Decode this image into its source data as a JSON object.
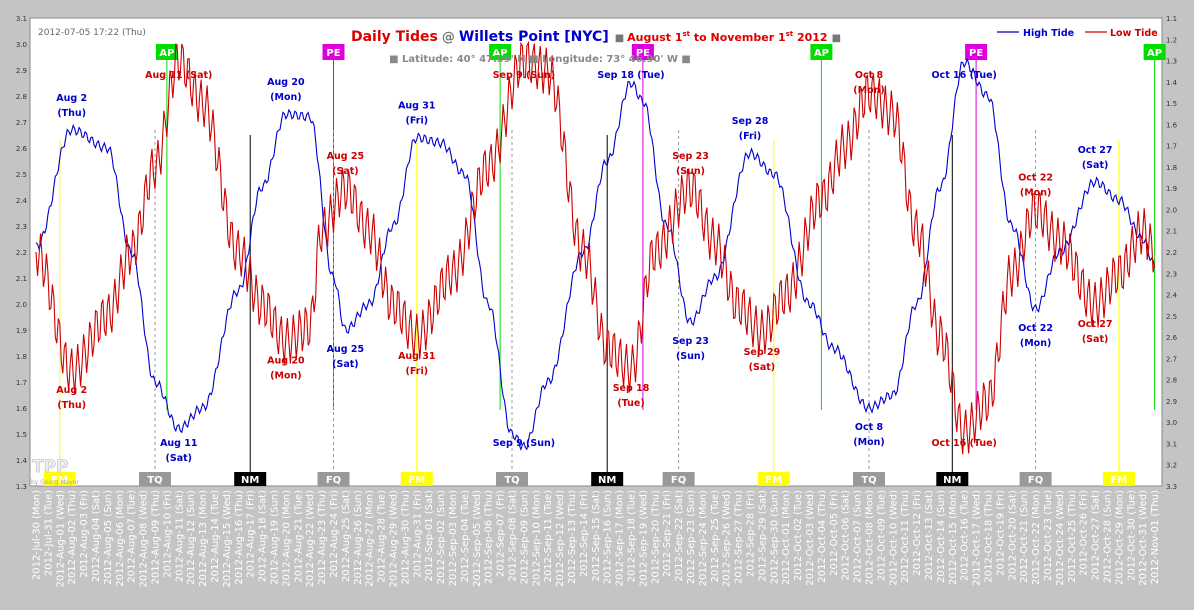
{
  "chart_data": {
    "type": "line",
    "timestamp": "2012-07-05 17:22 (Thu)",
    "title": {
      "part1": "Daily Tides",
      "at": "@",
      "location": "Willets Point [NYC]",
      "range_prefix": "August 1",
      "range_sup1": "st",
      "range_mid": " to November 1",
      "range_sup2": "st",
      "range_year": " 2012"
    },
    "subtitle": {
      "lat": "Latitude: 40° 47.59' N",
      "lon": "Longitude: 73° 46.90' W"
    },
    "legend": {
      "placement": "top-right",
      "high": "High Tide",
      "low": "Low Tide"
    },
    "colors": {
      "high": "#0000cc",
      "low": "#cc0000",
      "bg": "#ffffff",
      "frame": "#c4c4c4"
    },
    "watermark": {
      "main": "TPP",
      "sub": "by Georg Mayer"
    },
    "y_left_ticks": [
      "1.3",
      "1.4",
      "1.5",
      "1.6",
      "1.7",
      "1.8",
      "1.9",
      "2.0",
      "2.1",
      "2.2",
      "2.3",
      "2.4",
      "2.5",
      "2.6",
      "2.7",
      "2.8",
      "2.9",
      "3.0",
      "3.1"
    ],
    "y_right_ticks": [
      "1.1",
      "1.2",
      "1.3",
      "1.4",
      "1.5",
      "1.6",
      "1.7",
      "1.8",
      "1.9",
      "2.0",
      "2.1",
      "2.2",
      "2.3",
      "2.4",
      "2.5",
      "2.6",
      "2.7",
      "2.8",
      "2.9",
      "3.0",
      "3.1",
      "3.2",
      "3.3"
    ],
    "y_left_range": [
      1.3,
      3.1
    ],
    "y_right_range": [
      1.1,
      3.3
    ],
    "y_right_inverted": true,
    "x_start_day": "2012-07-30",
    "x_labels": [
      "2012-Jul-30 (Mon)",
      "2012-Jul-31 (Tue)",
      "2012-Aug-01 (Wed)",
      "2012-Aug-02 (Thu)",
      "2012-Aug-03 (Fri)",
      "2012-Aug-04 (Sat)",
      "2012-Aug-05 (Sun)",
      "2012-Aug-06 (Mon)",
      "2012-Aug-07 (Tue)",
      "2012-Aug-08 (Wed)",
      "2012-Aug-09 (Thu)",
      "2012-Aug-10 (Fri)",
      "2012-Aug-11 (Sat)",
      "2012-Aug-12 (Sun)",
      "2012-Aug-13 (Mon)",
      "2012-Aug-14 (Tue)",
      "2012-Aug-15 (Wed)",
      "2012-Aug-16 (Thu)",
      "2012-Aug-17 (Fri)",
      "2012-Aug-18 (Sat)",
      "2012-Aug-19 (Sun)",
      "2012-Aug-20 (Mon)",
      "2012-Aug-21 (Tue)",
      "2012-Aug-22 (Wed)",
      "2012-Aug-23 (Thu)",
      "2012-Aug-24 (Fri)",
      "2012-Aug-25 (Sat)",
      "2012-Aug-26 (Sun)",
      "2012-Aug-27 (Mon)",
      "2012-Aug-28 (Tue)",
      "2012-Aug-29 (Wed)",
      "2012-Aug-30 (Thu)",
      "2012-Aug-31 (Fri)",
      "2012-Sep-01 (Sat)",
      "2012-Sep-02 (Sun)",
      "2012-Sep-03 (Mon)",
      "2012-Sep-04 (Tue)",
      "2012-Sep-05 (Wed)",
      "2012-Sep-06 (Thu)",
      "2012-Sep-07 (Fri)",
      "2012-Sep-08 (Sat)",
      "2012-Sep-09 (Sun)",
      "2012-Sep-10 (Mon)",
      "2012-Sep-11 (Tue)",
      "2012-Sep-12 (Wed)",
      "2012-Sep-13 (Thu)",
      "2012-Sep-14 (Fri)",
      "2012-Sep-15 (Sat)",
      "2012-Sep-16 (Sun)",
      "2012-Sep-17 (Mon)",
      "2012-Sep-18 (Tue)",
      "2012-Sep-19 (Wed)",
      "2012-Sep-20 (Thu)",
      "2012-Sep-21 (Fri)",
      "2012-Sep-22 (Sat)",
      "2012-Sep-23 (Sun)",
      "2012-Sep-24 (Mon)",
      "2012-Sep-25 (Tue)",
      "2012-Sep-26 (Wed)",
      "2012-Sep-27 (Thu)",
      "2012-Sep-28 (Fri)",
      "2012-Sep-29 (Sat)",
      "2012-Sep-30 (Sun)",
      "2012-Oct-01 (Mon)",
      "2012-Oct-02 (Tue)",
      "2012-Oct-03 (Wed)",
      "2012-Oct-04 (Thu)",
      "2012-Oct-05 (Fri)",
      "2012-Oct-06 (Sat)",
      "2012-Oct-07 (Sun)",
      "2012-Oct-08 (Mon)",
      "2012-Oct-09 (Tue)",
      "2012-Oct-10 (Wed)",
      "2012-Oct-11 (Thu)",
      "2012-Oct-12 (Fri)",
      "2012-Oct-13 (Sat)",
      "2012-Oct-14 (Sun)",
      "2012-Oct-15 (Mon)",
      "2012-Oct-16 (Tue)",
      "2012-Oct-17 (Wed)",
      "2012-Oct-18 (Thu)",
      "2012-Oct-19 (Fri)",
      "2012-Oct-20 (Sat)",
      "2012-Oct-21 (Sun)",
      "2012-Oct-22 (Mon)",
      "2012-Oct-23 (Tue)",
      "2012-Oct-24 (Wed)",
      "2012-Oct-25 (Thu)",
      "2012-Oct-26 (Fri)",
      "2012-Oct-27 (Sat)",
      "2012-Oct-28 (Sun)",
      "2012-Oct-29 (Mon)",
      "2012-Oct-30 (Tue)",
      "2012-Oct-31 (Wed)",
      "2012-Nov-01 (Thu)"
    ],
    "series": [
      {
        "name": "High Tide",
        "axis": "left",
        "color": "#0000cc",
        "key_points": [
          [
            "2012-07-30",
            2.22
          ],
          [
            "2012-08-02",
            2.67
          ],
          [
            "2012-08-05",
            2.6
          ],
          [
            "2012-08-07",
            2.2
          ],
          [
            "2012-08-09",
            1.7
          ],
          [
            "2012-08-11",
            1.52
          ],
          [
            "2012-08-13",
            1.6
          ],
          [
            "2012-08-16",
            2.05
          ],
          [
            "2012-08-18",
            2.45
          ],
          [
            "2012-08-20",
            2.73
          ],
          [
            "2012-08-22",
            2.72
          ],
          [
            "2012-08-24",
            2.1
          ],
          [
            "2012-08-25",
            1.9
          ],
          [
            "2012-08-27",
            2.0
          ],
          [
            "2012-08-29",
            2.3
          ],
          [
            "2012-08-31",
            2.64
          ],
          [
            "2012-09-02",
            2.62
          ],
          [
            "2012-09-04",
            2.5
          ],
          [
            "2012-09-06",
            2.0
          ],
          [
            "2012-09-08",
            1.5
          ],
          [
            "2012-09-09",
            1.45
          ],
          [
            "2012-09-11",
            1.7
          ],
          [
            "2012-09-14",
            2.2
          ],
          [
            "2012-09-16",
            2.55
          ],
          [
            "2012-09-18",
            2.85
          ],
          [
            "2012-09-19",
            2.78
          ],
          [
            "2012-09-21",
            2.3
          ],
          [
            "2012-09-23",
            1.93
          ],
          [
            "2012-09-25",
            2.1
          ],
          [
            "2012-09-28",
            2.58
          ],
          [
            "2012-09-30",
            2.5
          ],
          [
            "2012-10-03",
            2.0
          ],
          [
            "2012-10-05",
            1.83
          ],
          [
            "2012-10-08",
            1.6
          ],
          [
            "2012-10-10",
            1.65
          ],
          [
            "2012-10-12",
            2.0
          ],
          [
            "2012-10-14",
            2.45
          ],
          [
            "2012-10-16",
            2.93
          ],
          [
            "2012-10-18",
            2.8
          ],
          [
            "2012-10-20",
            2.3
          ],
          [
            "2012-10-22",
            1.98
          ],
          [
            "2012-10-24",
            2.2
          ],
          [
            "2012-10-27",
            2.47
          ],
          [
            "2012-10-29",
            2.4
          ],
          [
            "2012-10-31",
            2.25
          ],
          [
            "2012-11-01",
            2.15
          ]
        ]
      },
      {
        "name": "Low Tide",
        "axis": "right",
        "color": "#cc0000",
        "key_points": [
          [
            "2012-07-30",
            2.2
          ],
          [
            "2012-08-02",
            2.76
          ],
          [
            "2012-08-05",
            2.5
          ],
          [
            "2012-08-07",
            2.2
          ],
          [
            "2012-08-09",
            1.8
          ],
          [
            "2012-08-11",
            1.3
          ],
          [
            "2012-08-13",
            1.5
          ],
          [
            "2012-08-16",
            2.2
          ],
          [
            "2012-08-18",
            2.45
          ],
          [
            "2012-08-20",
            2.62
          ],
          [
            "2012-08-22",
            2.55
          ],
          [
            "2012-08-23",
            2.1
          ],
          [
            "2012-08-25",
            1.9
          ],
          [
            "2012-08-27",
            2.1
          ],
          [
            "2012-08-29",
            2.45
          ],
          [
            "2012-08-31",
            2.6
          ],
          [
            "2012-09-03",
            2.3
          ],
          [
            "2012-09-06",
            1.8
          ],
          [
            "2012-09-09",
            1.3
          ],
          [
            "2012-09-11",
            1.35
          ],
          [
            "2012-09-14",
            2.2
          ],
          [
            "2012-09-16",
            2.65
          ],
          [
            "2012-09-18",
            2.75
          ],
          [
            "2012-09-20",
            2.2
          ],
          [
            "2012-09-23",
            1.9
          ],
          [
            "2012-09-25",
            2.15
          ],
          [
            "2012-09-27",
            2.45
          ],
          [
            "2012-09-29",
            2.58
          ],
          [
            "2012-10-01",
            2.4
          ],
          [
            "2012-10-04",
            1.95
          ],
          [
            "2012-10-06",
            1.7
          ],
          [
            "2012-10-08",
            1.45
          ],
          [
            "2012-10-10",
            1.55
          ],
          [
            "2012-10-12",
            2.1
          ],
          [
            "2012-10-14",
            2.6
          ],
          [
            "2012-10-16",
            3.05
          ],
          [
            "2012-10-18",
            2.9
          ],
          [
            "2012-10-20",
            2.3
          ],
          [
            "2012-10-22",
            2.0
          ],
          [
            "2012-10-24",
            2.15
          ],
          [
            "2012-10-27",
            2.45
          ],
          [
            "2012-10-29",
            2.3
          ],
          [
            "2012-10-31",
            2.1
          ],
          [
            "2012-11-01",
            2.2
          ]
        ]
      }
    ],
    "markers": [
      {
        "type": "AP",
        "date": "2012-08-10",
        "color": "#00dd00"
      },
      {
        "type": "PE",
        "date": "2012-08-24",
        "color": "#dd00dd"
      },
      {
        "type": "AP",
        "date": "2012-09-07",
        "color": "#00dd00"
      },
      {
        "type": "PE",
        "date": "2012-09-19",
        "color": "#dd00dd"
      },
      {
        "type": "AP",
        "date": "2012-10-04",
        "color": "#00dd00"
      },
      {
        "type": "PE",
        "date": "2012-10-17",
        "color": "#dd00dd"
      },
      {
        "type": "AP",
        "date": "2012-11-01",
        "color": "#00dd00"
      }
    ],
    "moon_phases": [
      {
        "type": "FM",
        "date": "2012-08-01"
      },
      {
        "type": "TQ",
        "date": "2012-08-09"
      },
      {
        "type": "NM",
        "date": "2012-08-17"
      },
      {
        "type": "FQ",
        "date": "2012-08-24"
      },
      {
        "type": "FM",
        "date": "2012-08-31"
      },
      {
        "type": "TQ",
        "date": "2012-09-08"
      },
      {
        "type": "NM",
        "date": "2012-09-16"
      },
      {
        "type": "FQ",
        "date": "2012-09-22"
      },
      {
        "type": "FM",
        "date": "2012-09-30"
      },
      {
        "type": "TQ",
        "date": "2012-10-08"
      },
      {
        "type": "NM",
        "date": "2012-10-15"
      },
      {
        "type": "FQ",
        "date": "2012-10-22"
      },
      {
        "type": "FM",
        "date": "2012-10-29"
      }
    ],
    "annotations": [
      {
        "series": "high",
        "date": "2012-08-02",
        "lines": [
          "Aug 2",
          "(Thu)"
        ],
        "pos": "above"
      },
      {
        "series": "low",
        "date": "2012-08-02",
        "lines": [
          "Aug 2",
          "(Thu)"
        ],
        "pos": "below"
      },
      {
        "series": "low",
        "date": "2012-08-11",
        "lines": [
          "Aug 11 (Sat)"
        ],
        "pos": "above"
      },
      {
        "series": "high",
        "date": "2012-08-11",
        "lines": [
          "Aug 11",
          "(Sat)"
        ],
        "pos": "below"
      },
      {
        "series": "high",
        "date": "2012-08-20",
        "lines": [
          "Aug 20",
          "(Mon)"
        ],
        "pos": "above"
      },
      {
        "series": "low",
        "date": "2012-08-20",
        "lines": [
          "Aug 20",
          "(Mon)"
        ],
        "pos": "below"
      },
      {
        "series": "low",
        "date": "2012-08-25",
        "lines": [
          "Aug 25",
          "(Sat)"
        ],
        "pos": "above"
      },
      {
        "series": "high",
        "date": "2012-08-25",
        "lines": [
          "Aug 25",
          "(Sat)"
        ],
        "pos": "below"
      },
      {
        "series": "high",
        "date": "2012-08-31",
        "lines": [
          "Aug 31",
          "(Fri)"
        ],
        "pos": "above"
      },
      {
        "series": "low",
        "date": "2012-08-31",
        "lines": [
          "Aug 31",
          "(Fri)"
        ],
        "pos": "below"
      },
      {
        "series": "low",
        "date": "2012-09-09",
        "lines": [
          "Sep 9 (Sun)"
        ],
        "pos": "above"
      },
      {
        "series": "high",
        "date": "2012-09-09",
        "lines": [
          "Sep 9 (Sun)"
        ],
        "pos": "below"
      },
      {
        "series": "high",
        "date": "2012-09-18",
        "lines": [
          "Sep 18 (Tue)"
        ],
        "pos": "above"
      },
      {
        "series": "low",
        "date": "2012-09-18",
        "lines": [
          "Sep 18",
          "(Tue)"
        ],
        "pos": "below"
      },
      {
        "series": "low",
        "date": "2012-09-23",
        "lines": [
          "Sep 23",
          "(Sun)"
        ],
        "pos": "above"
      },
      {
        "series": "high",
        "date": "2012-09-23",
        "lines": [
          "Sep 23",
          "(Sun)"
        ],
        "pos": "below"
      },
      {
        "series": "high",
        "date": "2012-09-28",
        "lines": [
          "Sep 28",
          "(Fri)"
        ],
        "pos": "above"
      },
      {
        "series": "low",
        "date": "2012-09-29",
        "lines": [
          "Sep 29",
          "(Sat)"
        ],
        "pos": "below"
      },
      {
        "series": "low",
        "date": "2012-10-08",
        "lines": [
          "Oct 8",
          "(Mon)"
        ],
        "pos": "above"
      },
      {
        "series": "high",
        "date": "2012-10-08",
        "lines": [
          "Oct 8",
          "(Mon)"
        ],
        "pos": "below"
      },
      {
        "series": "high",
        "date": "2012-10-16",
        "lines": [
          "Oct 16 (Tue)"
        ],
        "pos": "above"
      },
      {
        "series": "low",
        "date": "2012-10-16",
        "lines": [
          "Oct 16 (Tue)"
        ],
        "pos": "below"
      },
      {
        "series": "low",
        "date": "2012-10-22",
        "lines": [
          "Oct 22",
          "(Mon)"
        ],
        "pos": "above"
      },
      {
        "series": "high",
        "date": "2012-10-22",
        "lines": [
          "Oct 22",
          "(Mon)"
        ],
        "pos": "below"
      },
      {
        "series": "high",
        "date": "2012-10-27",
        "lines": [
          "Oct 27",
          "(Sat)"
        ],
        "pos": "above"
      },
      {
        "series": "low",
        "date": "2012-10-27",
        "lines": [
          "Oct 27",
          "(Sat)"
        ],
        "pos": "below"
      }
    ]
  }
}
